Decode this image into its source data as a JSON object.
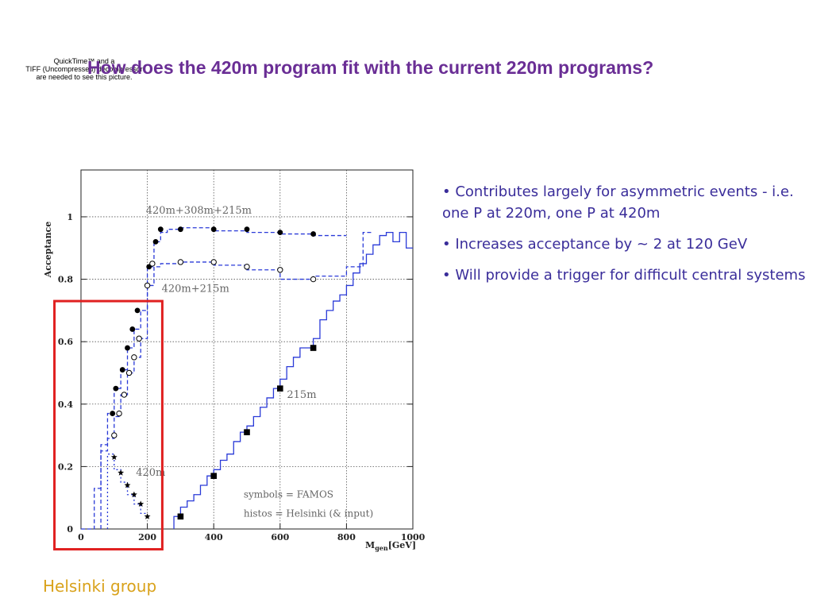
{
  "slide": {
    "title": "How does the 420m program fit with the current 220m programs?",
    "placeholder_lines": [
      "QuickTime™ and a",
      "TIFF (Uncompressed) decompressor",
      "are needed to see this picture."
    ],
    "bullets": [
      "• Contributes largely for asymmetric events - i.e. one P at 220m, one P at 420m",
      "• Increases acceptance by ~ 2 at 120 GeV",
      "• Will provide a trigger for difficult central systems"
    ],
    "footer": "Helsinki group"
  },
  "chart_data": {
    "type": "scatter",
    "ylabel": "Acceptance",
    "xlabel_main": "M",
    "xlabel_sub": "gen",
    "xlabel_unit": "[GeV]",
    "xlim": [
      0,
      1000
    ],
    "ylim": [
      0,
      1.15
    ],
    "xticks": [
      0,
      200,
      400,
      600,
      800,
      1000
    ],
    "xtick_labels": [
      "0",
      "200",
      "400",
      "600",
      "800",
      "1000"
    ],
    "yticks": [
      0,
      0.2,
      0.4,
      0.6,
      0.8,
      1
    ],
    "ytick_labels": [
      "0",
      "0.2",
      "0.4",
      "0.6",
      "0.8",
      "1"
    ],
    "grid": true,
    "annotations": {
      "notes": [
        "symbols = FAMOS",
        "histos = Helsinki (& input)"
      ]
    },
    "highlight_box": {
      "x_range": [
        -80,
        245
      ],
      "y_range": [
        -0.065,
        0.73
      ],
      "color": "#e02020"
    },
    "series": [
      {
        "name": "420m+308m+215m",
        "label_at": [
          355,
          1.01
        ],
        "symbol": "filled-circle",
        "line": "dash",
        "points": [
          [
            95,
            0.37
          ],
          [
            105,
            0.45
          ],
          [
            125,
            0.51
          ],
          [
            140,
            0.58
          ],
          [
            155,
            0.64
          ],
          [
            170,
            0.7
          ],
          [
            205,
            0.84
          ],
          [
            225,
            0.92
          ],
          [
            240,
            0.96
          ],
          [
            300,
            0.96
          ],
          [
            400,
            0.96
          ],
          [
            500,
            0.96
          ],
          [
            600,
            0.95
          ],
          [
            700,
            0.945
          ]
        ],
        "hist": [
          [
            0,
            40,
            0
          ],
          [
            40,
            60,
            0.13
          ],
          [
            60,
            80,
            0.27
          ],
          [
            80,
            100,
            0.37
          ],
          [
            100,
            120,
            0.45
          ],
          [
            120,
            140,
            0.51
          ],
          [
            140,
            160,
            0.58
          ],
          [
            160,
            180,
            0.64
          ],
          [
            180,
            200,
            0.7
          ],
          [
            200,
            220,
            0.84
          ],
          [
            220,
            240,
            0.92
          ],
          [
            240,
            260,
            0.95
          ],
          [
            260,
            300,
            0.96
          ],
          [
            300,
            400,
            0.965
          ],
          [
            400,
            500,
            0.955
          ],
          [
            500,
            600,
            0.95
          ],
          [
            600,
            700,
            0.945
          ],
          [
            700,
            800,
            0.94
          ]
        ]
      },
      {
        "name": "420m+215m",
        "label_at": [
          345,
          0.76
        ],
        "symbol": "open-circle",
        "line": "dash",
        "points": [
          [
            100,
            0.3
          ],
          [
            115,
            0.37
          ],
          [
            130,
            0.43
          ],
          [
            145,
            0.5
          ],
          [
            160,
            0.55
          ],
          [
            175,
            0.61
          ],
          [
            200,
            0.78
          ],
          [
            215,
            0.85
          ],
          [
            300,
            0.855
          ],
          [
            400,
            0.855
          ],
          [
            500,
            0.84
          ],
          [
            600,
            0.83
          ],
          [
            700,
            0.8
          ]
        ],
        "hist": [
          [
            60,
            80,
            0.25
          ],
          [
            80,
            100,
            0.29
          ],
          [
            100,
            120,
            0.36
          ],
          [
            120,
            140,
            0.43
          ],
          [
            140,
            160,
            0.5
          ],
          [
            160,
            180,
            0.55
          ],
          [
            180,
            200,
            0.61
          ],
          [
            200,
            220,
            0.78
          ],
          [
            220,
            240,
            0.84
          ],
          [
            240,
            300,
            0.85
          ],
          [
            300,
            400,
            0.855
          ],
          [
            400,
            500,
            0.845
          ],
          [
            500,
            600,
            0.83
          ],
          [
            600,
            700,
            0.8
          ],
          [
            700,
            800,
            0.81
          ],
          [
            800,
            850,
            0.84
          ],
          [
            850,
            880,
            0.95
          ]
        ]
      },
      {
        "name": "420m",
        "label_at": [
          210,
          0.17
        ],
        "symbol": "star",
        "line": "dot",
        "points": [
          [
            100,
            0.23
          ],
          [
            120,
            0.18
          ],
          [
            140,
            0.14
          ],
          [
            160,
            0.11
          ],
          [
            180,
            0.08
          ],
          [
            200,
            0.04
          ]
        ],
        "hist": [
          [
            80,
            100,
            0.24
          ],
          [
            100,
            120,
            0.19
          ],
          [
            120,
            140,
            0.15
          ],
          [
            140,
            160,
            0.11
          ],
          [
            160,
            180,
            0.08
          ],
          [
            180,
            200,
            0.05
          ]
        ]
      },
      {
        "name": "215m",
        "label_at": [
          665,
          0.42
        ],
        "symbol": "filled-square",
        "line": "solid",
        "points": [
          [
            300,
            0.04
          ],
          [
            400,
            0.17
          ],
          [
            500,
            0.31
          ],
          [
            600,
            0.45
          ],
          [
            700,
            0.58
          ]
        ],
        "hist": [
          [
            280,
            300,
            0.04
          ],
          [
            300,
            320,
            0.07
          ],
          [
            320,
            340,
            0.09
          ],
          [
            340,
            360,
            0.11
          ],
          [
            360,
            380,
            0.14
          ],
          [
            380,
            400,
            0.17
          ],
          [
            400,
            420,
            0.19
          ],
          [
            420,
            440,
            0.22
          ],
          [
            440,
            460,
            0.24
          ],
          [
            460,
            480,
            0.28
          ],
          [
            480,
            500,
            0.31
          ],
          [
            500,
            520,
            0.33
          ],
          [
            520,
            540,
            0.36
          ],
          [
            540,
            560,
            0.39
          ],
          [
            560,
            580,
            0.42
          ],
          [
            580,
            600,
            0.45
          ],
          [
            600,
            620,
            0.48
          ],
          [
            620,
            640,
            0.52
          ],
          [
            640,
            660,
            0.55
          ],
          [
            660,
            680,
            0.58
          ],
          [
            680,
            700,
            0.58
          ],
          [
            700,
            720,
            0.61
          ],
          [
            720,
            740,
            0.67
          ],
          [
            740,
            760,
            0.7
          ],
          [
            760,
            780,
            0.73
          ],
          [
            780,
            800,
            0.75
          ],
          [
            800,
            820,
            0.78
          ],
          [
            820,
            840,
            0.82
          ],
          [
            840,
            860,
            0.85
          ],
          [
            860,
            880,
            0.88
          ],
          [
            880,
            900,
            0.91
          ],
          [
            900,
            920,
            0.94
          ],
          [
            920,
            940,
            0.95
          ],
          [
            940,
            960,
            0.92
          ],
          [
            960,
            980,
            0.95
          ],
          [
            980,
            1000,
            0.9
          ]
        ]
      }
    ]
  }
}
